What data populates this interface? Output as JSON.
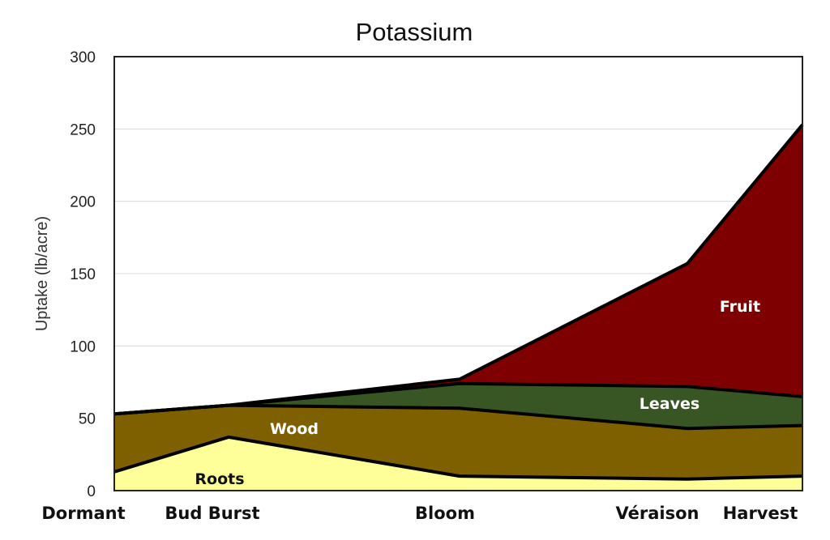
{
  "chart_data": {
    "type": "area",
    "stacked": true,
    "title": "Potassium",
    "xlabel": "",
    "ylabel": "Uptake  (lb/acre)",
    "ylim": [
      0,
      300
    ],
    "yticks": [
      0,
      50,
      100,
      150,
      200,
      250,
      300
    ],
    "grid": true,
    "legend": "inline labels",
    "categories": [
      "Dormant",
      "Bud Burst",
      "Bloom",
      "Véraison",
      "Harvest"
    ],
    "series": [
      {
        "name": "Roots",
        "color": "#FFFF99",
        "label_color": "#111111",
        "values": [
          13,
          37,
          10,
          8,
          10
        ]
      },
      {
        "name": "Wood",
        "color": "#7F6000",
        "label_color": "#FFFFFF",
        "values": [
          40,
          22,
          47,
          35,
          35
        ]
      },
      {
        "name": "Leaves",
        "color": "#375623",
        "label_color": "#FFFFFF",
        "values": [
          0,
          0,
          17,
          29,
          20
        ]
      },
      {
        "name": "Fruit",
        "color": "#7F0000",
        "label_color": "#FFFFFF",
        "values": [
          0,
          0,
          3,
          85,
          188
        ]
      }
    ],
    "cumulative_tops": {
      "Roots": [
        13,
        37,
        10,
        8,
        10
      ],
      "Wood": [
        53,
        59,
        57,
        43,
        45
      ],
      "Leaves": [
        53,
        59,
        74,
        72,
        65
      ],
      "Fruit": [
        53,
        59,
        77,
        157,
        253
      ]
    }
  }
}
